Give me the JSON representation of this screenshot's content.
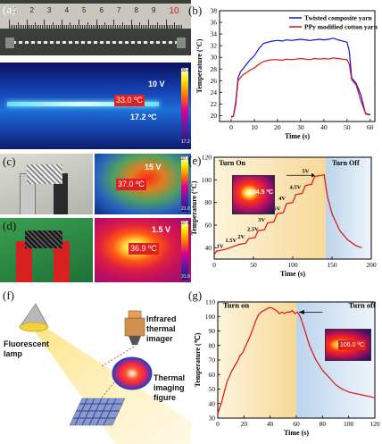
{
  "panel_a": {
    "label": "(a)",
    "ruler_numbers": [
      "1",
      "2",
      "3",
      "4",
      "5",
      "6",
      "7",
      "8",
      "9",
      "10"
    ],
    "voltage": "10 V",
    "hot_temp": "33.0 ºC",
    "cold_temp": "17.2 ºC",
    "cbar_top": "33.0",
    "cbar_bottom": "17.2"
  },
  "panel_b": {
    "label": "(b)"
  },
  "panel_c": {
    "label": "(c)",
    "voltage": "15 V",
    "hot_temp": "37.0 ºC",
    "cbar_top": "37.0",
    "cbar_bottom": "21.0"
  },
  "panel_d": {
    "label": "(d)",
    "voltage": "1.5 V",
    "hot_temp": "36.9 ºC",
    "cbar_top": "37.0",
    "cbar_bottom": "31.0"
  },
  "panel_e": {
    "label": "(e)",
    "turn_on": "Turn On",
    "turn_off": "Turn Off",
    "inset_temp": "104.5 ºC",
    "voltage_labels": [
      "1V",
      "1.5V",
      "2V",
      "2.5V",
      "3V",
      "3.5V",
      "4V",
      "4.5V",
      "5V"
    ]
  },
  "panel_f": {
    "label": "(f)",
    "lamp": "Fluorescent lamp",
    "imager": "Infrared thermal imager",
    "figure": "Thermal imaging figure"
  },
  "panel_g": {
    "label": "(g)",
    "turn_on": "Turn on",
    "turn_off": "Turn off",
    "inset_temp": "106.0 ºC"
  },
  "colors": {
    "blue_series": "#1010e0",
    "red_series": "#e01010",
    "on_shade": "#f7d898",
    "off_shade": "#bcd4ec"
  },
  "chart_data": [
    {
      "id": "b",
      "type": "line",
      "xlabel": "Time (s)",
      "ylabel": "Temperature (°C)",
      "xlim": [
        -5,
        62
      ],
      "ylim": [
        19,
        38
      ],
      "xticks": [
        0,
        10,
        20,
        30,
        40,
        50,
        60
      ],
      "yticks": [
        20,
        22,
        24,
        26,
        28,
        30,
        32,
        34,
        36,
        38
      ],
      "legend": "top-right",
      "series": [
        {
          "name": "Twisted composite yarn",
          "color": "#1010e0",
          "x": [
            0,
            1,
            2,
            3,
            4,
            5,
            6,
            8,
            10,
            12,
            14,
            16,
            18,
            20,
            22,
            24,
            26,
            28,
            30,
            32,
            34,
            36,
            38,
            40,
            42,
            44,
            46,
            48,
            50,
            51,
            52,
            54,
            56,
            58,
            60
          ],
          "y": [
            19.8,
            20.0,
            22.5,
            26.5,
            27.5,
            28.0,
            28.5,
            29.5,
            30.3,
            31.5,
            32.4,
            32.6,
            32.8,
            32.9,
            32.8,
            33.0,
            32.9,
            33.0,
            33.1,
            33.0,
            32.9,
            33.0,
            33.1,
            33.0,
            33.1,
            33.3,
            33.0,
            32.8,
            32.6,
            31.0,
            26.5,
            25.5,
            23.5,
            20.3,
            20.1
          ]
        },
        {
          "name": "PPy modified cotton yarn",
          "color": "#e01010",
          "x": [
            0,
            1,
            2,
            3,
            4,
            5,
            6,
            8,
            10,
            12,
            14,
            16,
            18,
            20,
            22,
            24,
            26,
            28,
            30,
            32,
            34,
            36,
            38,
            40,
            42,
            44,
            46,
            48,
            50,
            51,
            52,
            54,
            56,
            58,
            60
          ],
          "y": [
            19.7,
            19.9,
            22.0,
            26.0,
            26.5,
            27.0,
            27.2,
            27.8,
            28.2,
            28.8,
            29.3,
            29.5,
            29.6,
            29.6,
            29.5,
            29.7,
            29.6,
            29.7,
            29.8,
            29.7,
            29.6,
            29.8,
            29.7,
            29.8,
            29.7,
            29.9,
            29.8,
            29.7,
            29.6,
            28.8,
            26.2,
            25.2,
            22.5,
            20.4,
            20.2
          ]
        }
      ]
    },
    {
      "id": "e",
      "type": "line",
      "xlabel": "Time (s)",
      "ylabel": "Temperature (°C)",
      "xlim": [
        0,
        200
      ],
      "ylim": [
        30,
        120
      ],
      "xticks": [
        0,
        50,
        100,
        150,
        200
      ],
      "yticks": [
        40,
        60,
        80,
        100,
        120
      ],
      "shade_on": [
        0,
        142
      ],
      "shade_off": [
        142,
        200
      ],
      "series": [
        {
          "name": "",
          "color": "#e01010",
          "x": [
            0,
            3,
            10,
            16,
            20,
            28,
            32,
            40,
            44,
            52,
            56,
            64,
            68,
            76,
            80,
            88,
            92,
            100,
            104,
            112,
            116,
            124,
            128,
            136,
            140,
            144,
            150,
            160,
            170,
            180,
            188
          ],
          "y": [
            34,
            37,
            38,
            39,
            40,
            42,
            43,
            44,
            48,
            49,
            55,
            56,
            62,
            63,
            70,
            71,
            79,
            80,
            87,
            88,
            95,
            96,
            103,
            104,
            104.5,
            86,
            70,
            55,
            47,
            42,
            40
          ]
        }
      ],
      "step_labels": {
        "text": [
          "1V",
          "1.5V",
          "2V",
          "2.5V",
          "3V",
          "3.5V",
          "4V",
          "4.5V",
          "5V"
        ],
        "x": [
          3,
          14,
          30,
          42,
          56,
          70,
          82,
          96,
          112
        ],
        "y": [
          40,
          45,
          48,
          55,
          63,
          73,
          82,
          92,
          106
        ]
      }
    },
    {
      "id": "g",
      "type": "line",
      "xlabel": "Time (s)",
      "ylabel": "Temperature (℃)",
      "xlim": [
        0,
        120
      ],
      "ylim": [
        30,
        110
      ],
      "xticks": [
        0,
        20,
        40,
        60,
        80,
        100,
        120
      ],
      "yticks": [
        30,
        40,
        50,
        60,
        70,
        80,
        90,
        100,
        110
      ],
      "shade_on": [
        0,
        60
      ],
      "shade_off": [
        60,
        120
      ],
      "series": [
        {
          "name": "",
          "color": "#e01010",
          "x": [
            0,
            1,
            3,
            5,
            7,
            9,
            11,
            13,
            15,
            17,
            19,
            21,
            23,
            25,
            27,
            29,
            31,
            33,
            35,
            37,
            39,
            41,
            43,
            45,
            47,
            49,
            51,
            53,
            55,
            57,
            59,
            61,
            63,
            66,
            70,
            75,
            80,
            85,
            90,
            95,
            100,
            105,
            110,
            115,
            120
          ],
          "y": [
            33,
            36,
            41,
            48,
            55,
            59,
            63,
            66,
            69,
            73,
            75,
            79,
            83,
            87,
            92,
            97,
            101,
            103,
            104,
            105,
            106,
            106,
            105,
            104,
            102,
            103,
            102,
            103,
            103,
            104,
            102,
            103,
            100,
            92,
            80,
            70,
            63,
            58,
            53,
            50,
            48,
            47,
            46,
            45,
            44
          ]
        }
      ]
    }
  ]
}
